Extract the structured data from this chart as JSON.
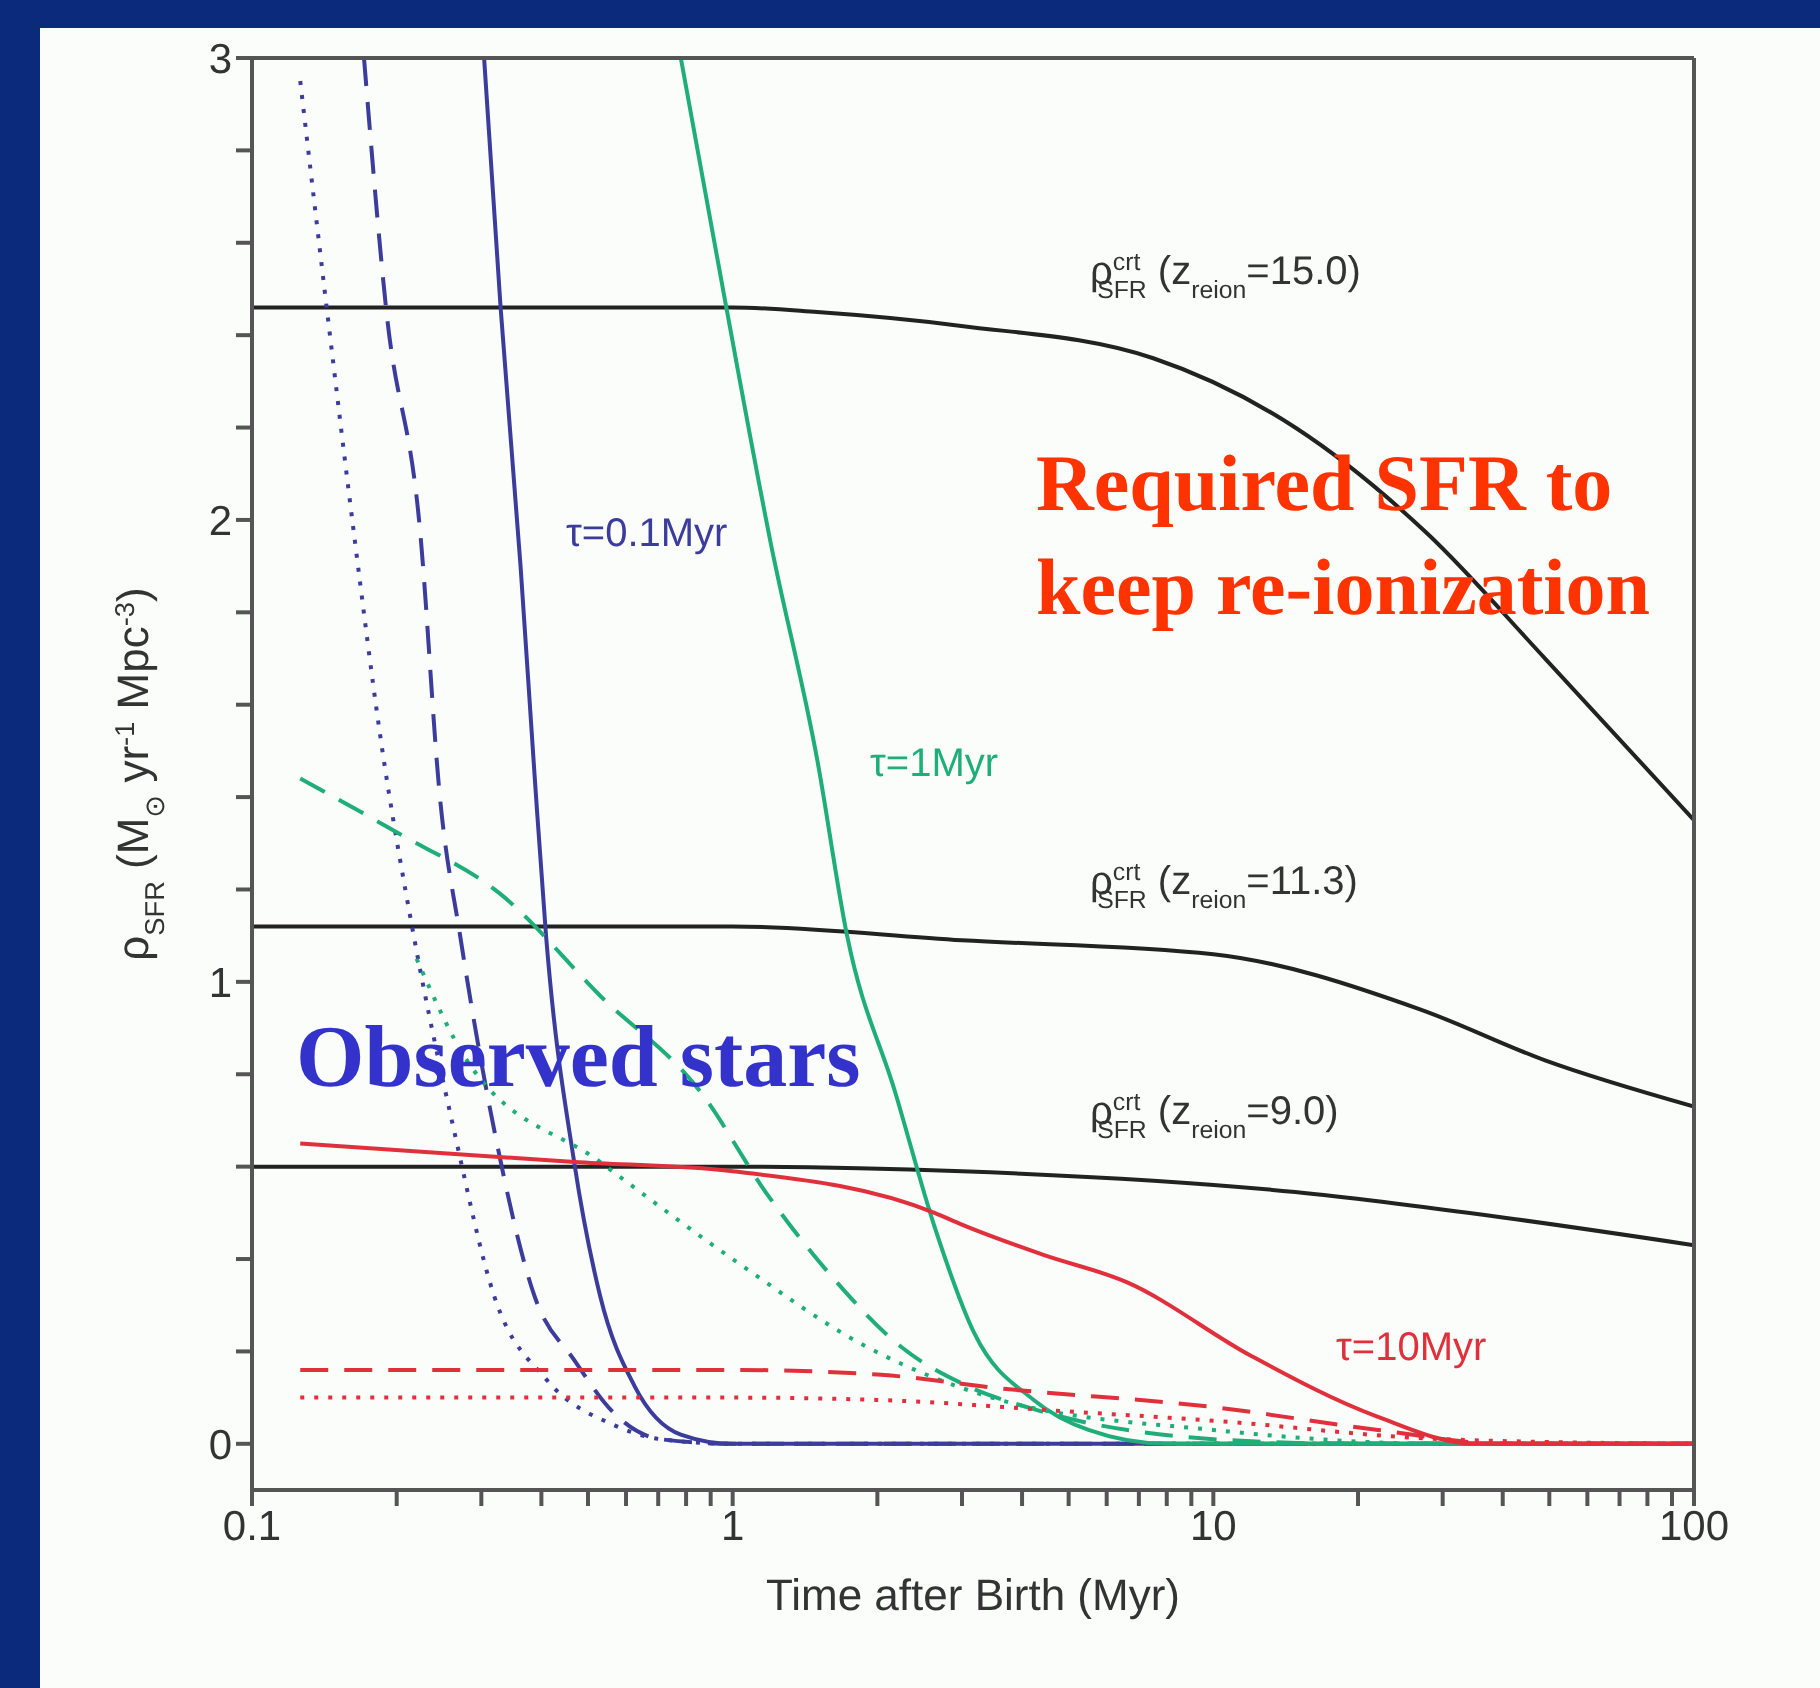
{
  "chart_data": {
    "type": "line",
    "xlabel": "Time after Birth (Myr)",
    "ylabel": "ρ$_{SFR}$ (M$_{⊙}$ yr$^{-1}$ Mpc$^{-3}$)",
    "log": "x",
    "marker": "none",
    "xlim": [
      0.1,
      100
    ],
    "xticks": [
      0.1,
      {
        "value": 0.2,
        "label": null
      },
      {
        "value": 0.3,
        "label": null
      },
      {
        "value": 0.4,
        "label": null
      },
      {
        "value": 0.5,
        "label": null
      },
      {
        "value": 0.6,
        "label": null
      },
      {
        "value": 0.7,
        "label": null
      },
      {
        "value": 0.8,
        "label": null
      },
      {
        "value": 0.9,
        "label": null
      },
      1,
      {
        "value": 2,
        "label": null
      },
      {
        "value": 3,
        "label": null
      },
      {
        "value": 4,
        "label": null
      },
      {
        "value": 5,
        "label": null
      },
      {
        "value": 6,
        "label": null
      },
      {
        "value": 7,
        "label": null
      },
      {
        "value": 8,
        "label": null
      },
      {
        "value": 9,
        "label": null
      },
      10,
      {
        "value": 20,
        "label": null
      },
      {
        "value": 30,
        "label": null
      },
      {
        "value": 40,
        "label": null
      },
      {
        "value": 50,
        "label": null
      },
      {
        "value": 60,
        "label": null
      },
      {
        "value": 70,
        "label": null
      },
      {
        "value": 80,
        "label": null
      },
      {
        "value": 90,
        "label": null
      },
      100
    ],
    "ylim": [
      -0.1,
      3
    ],
    "yticks": [
      0,
      {
        "value": 0.2,
        "label": null
      },
      {
        "value": 0.4,
        "label": null
      },
      {
        "value": 0.6,
        "label": null
      },
      {
        "value": 0.8,
        "label": null
      },
      1,
      {
        "value": 1.2,
        "label": null
      },
      {
        "value": 1.4,
        "label": null
      },
      {
        "value": 1.6,
        "label": null
      },
      {
        "value": 1.8,
        "label": null
      },
      2,
      {
        "value": 2.2,
        "label": null
      },
      {
        "value": 2.4,
        "label": null
      },
      {
        "value": 2.6,
        "label": null
      },
      {
        "value": 2.8,
        "label": null
      },
      3
    ],
    "series": [
      {
        "color": "#222222",
        "line_style": "solid",
        "x": [
          0.1,
          1,
          1.5,
          2.99,
          7.5,
          14.8,
          27.9,
          49,
          100
        ],
        "values": [
          2.46,
          2.46,
          2.45,
          2.42,
          2.35,
          2.2,
          1.97,
          1.7,
          1.35
        ]
      },
      {
        "color": "#222222",
        "line_style": "solid",
        "x": [
          0.1,
          1,
          3,
          10,
          27,
          49,
          100
        ],
        "values": [
          1.12,
          1.12,
          1.09,
          1.06,
          0.94,
          0.83,
          0.73
        ]
      },
      {
        "color": "#222222",
        "line_style": "solid",
        "x": [
          0.1,
          1,
          3,
          14.8,
          40,
          100
        ],
        "values": [
          0.6,
          0.6,
          0.59,
          0.545,
          0.49,
          0.43
        ]
      },
      {
        "color": "#3c3c9c",
        "line_style": "solid",
        "x": [
          0.304,
          0.329,
          0.362,
          0.387,
          0.409,
          0.468,
          0.53,
          0.625,
          0.78,
          1,
          100
        ],
        "values": [
          3,
          2.46,
          1.9,
          1.45,
          1.1,
          0.61,
          0.32,
          0.125,
          0.02,
          0,
          0
        ]
      },
      {
        "color": "#3c3c9c",
        "line_style": "dashed",
        "x": [
          0.171,
          0.19,
          0.224,
          0.246,
          0.271,
          0.319,
          0.387,
          0.469,
          0.568,
          0.708,
          1,
          100
        ],
        "values": [
          3,
          2.46,
          1.97,
          1.4,
          1.1,
          0.68,
          0.32,
          0.18,
          0.065,
          0.01,
          0,
          0
        ]
      },
      {
        "color": "#3c3c9c",
        "line_style": "dotted",
        "x": [
          0.126,
          0.143,
          0.163,
          0.185,
          0.217,
          0.263,
          0.319,
          0.409,
          0.568,
          0.708,
          1,
          100
        ],
        "values": [
          2.95,
          2.46,
          1.97,
          1.53,
          1.1,
          0.68,
          0.32,
          0.14,
          0.04,
          0.01,
          0,
          0
        ]
      },
      {
        "color": "#1fae7a",
        "line_style": "solid",
        "x": [
          0.78,
          0.97,
          1.2,
          1.5,
          1.73,
          2.18,
          2.63,
          3.18,
          4.23,
          5.5,
          8,
          100
        ],
        "values": [
          3,
          2.46,
          1.95,
          1.48,
          1.1,
          0.76,
          0.47,
          0.24,
          0.095,
          0.03,
          0,
          0
        ]
      },
      {
        "color": "#1fae7a",
        "line_style": "dashed",
        "x": [
          0.126,
          0.203,
          0.329,
          0.53,
          0.86,
          1.18,
          1.63,
          2.24,
          3.08,
          4.23,
          10,
          20,
          100
        ],
        "values": [
          1.44,
          1.32,
          1.19,
          0.97,
          0.76,
          0.54,
          0.355,
          0.21,
          0.125,
          0.075,
          0.01,
          0,
          0
        ]
      },
      {
        "color": "#1fae7a",
        "line_style": "dotted",
        "x": [
          0.22,
          0.28,
          0.53,
          1,
          1.9,
          3.6,
          10,
          30,
          100
        ],
        "values": [
          1.05,
          0.83,
          0.61,
          0.4,
          0.21,
          0.095,
          0.03,
          0,
          0
        ]
      },
      {
        "color": "#e0303c",
        "line_style": "solid",
        "x": [
          0.126,
          0.469,
          1,
          2.63,
          2.99,
          4.4,
          6.6,
          12,
          21.8,
          35,
          100
        ],
        "values": [
          0.65,
          0.61,
          0.59,
          0.5,
          0.475,
          0.41,
          0.35,
          0.19,
          0.06,
          0,
          0
        ]
      },
      {
        "color": "#e0303c",
        "line_style": "dashed",
        "x": [
          0.126,
          1,
          2,
          3.6,
          9.9,
          22,
          40,
          100
        ],
        "values": [
          0.16,
          0.16,
          0.15,
          0.12,
          0.08,
          0.03,
          0,
          0
        ]
      },
      {
        "color": "#e0303c",
        "line_style": "dotted",
        "x": [
          0.126,
          1,
          2,
          5,
          10,
          30,
          100
        ],
        "values": [
          0.1,
          0.1,
          0.095,
          0.07,
          0.05,
          0.01,
          0
        ]
      }
    ],
    "annotations": [
      "τ=0.1Myr",
      "τ=1Myr",
      "τ=10Myr",
      "ρ$^{crt}$$_{SFR}$ (z$_{reion}$=15.0)",
      "ρ$^{crt}$$_{SFR}$ (z$_{reion}$=11.3)",
      "ρ$^{crt}$$_{SFR}$ (z$_{reion}$=9.0)",
      "Observed stars",
      "Required SFR to keep re-ionization"
    ]
  }
}
